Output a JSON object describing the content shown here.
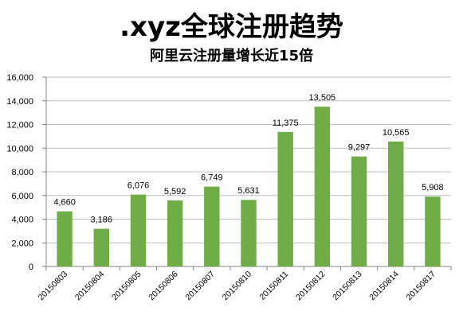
{
  "chart_data": {
    "type": "bar",
    "title": ".xyz全球注册趋势",
    "subtitle": "阿里云注册量增长近15倍",
    "categories": [
      "20150803",
      "20150804",
      "20150805",
      "20150806",
      "20150807",
      "20150810",
      "20150811",
      "20150812",
      "20150813",
      "20150814",
      "20150817"
    ],
    "values": [
      4660,
      3186,
      6076,
      5592,
      6749,
      5631,
      11375,
      13505,
      9297,
      10565,
      5908
    ],
    "value_labels": [
      "4,660",
      "3,186",
      "6,076",
      "5,592",
      "6,749",
      "5,631",
      "11,375",
      "13,505",
      "9,297",
      "10,565",
      "5,908"
    ],
    "y_ticks": [
      0,
      2000,
      4000,
      6000,
      8000,
      10000,
      12000,
      14000,
      16000
    ],
    "y_tick_labels": [
      "0",
      "2,000",
      "4,000",
      "6,000",
      "8,000",
      "10,000",
      "12,000",
      "14,000",
      "16,000"
    ],
    "ylim": [
      0,
      16000
    ],
    "grid": true,
    "bar_color": "#70AD47",
    "grid_color": "#BFBFBF"
  }
}
